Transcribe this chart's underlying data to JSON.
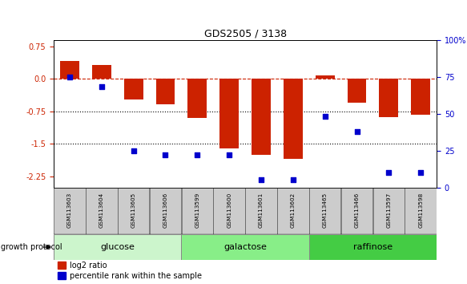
{
  "title": "GDS2505 / 3138",
  "samples": [
    "GSM113603",
    "GSM113604",
    "GSM113605",
    "GSM113606",
    "GSM113599",
    "GSM113600",
    "GSM113601",
    "GSM113602",
    "GSM113465",
    "GSM113466",
    "GSM113597",
    "GSM113598"
  ],
  "log2_ratio": [
    0.42,
    0.32,
    -0.48,
    -0.58,
    -0.9,
    -1.6,
    -1.75,
    -1.85,
    0.07,
    -0.55,
    -0.88,
    -0.82
  ],
  "percentile_rank": [
    75,
    68,
    25,
    22,
    22,
    22,
    5,
    5,
    48,
    38,
    10,
    10
  ],
  "groups": [
    {
      "label": "glucose",
      "start": 0,
      "end": 4,
      "color": "#ccf5cc"
    },
    {
      "label": "galactose",
      "start": 4,
      "end": 8,
      "color": "#88ee88"
    },
    {
      "label": "raffinose",
      "start": 8,
      "end": 12,
      "color": "#44cc44"
    }
  ],
  "bar_color": "#cc2200",
  "dot_color": "#0000cc",
  "ylim_left": [
    -2.5,
    0.9
  ],
  "yticks_left": [
    0.75,
    0.0,
    -0.75,
    -1.5,
    -2.25
  ],
  "yticks_right": [
    100,
    75,
    50,
    25,
    0
  ],
  "hline_y": 0.0,
  "dotted_hlines": [
    -0.75,
    -1.5
  ],
  "background_color": "#ffffff"
}
